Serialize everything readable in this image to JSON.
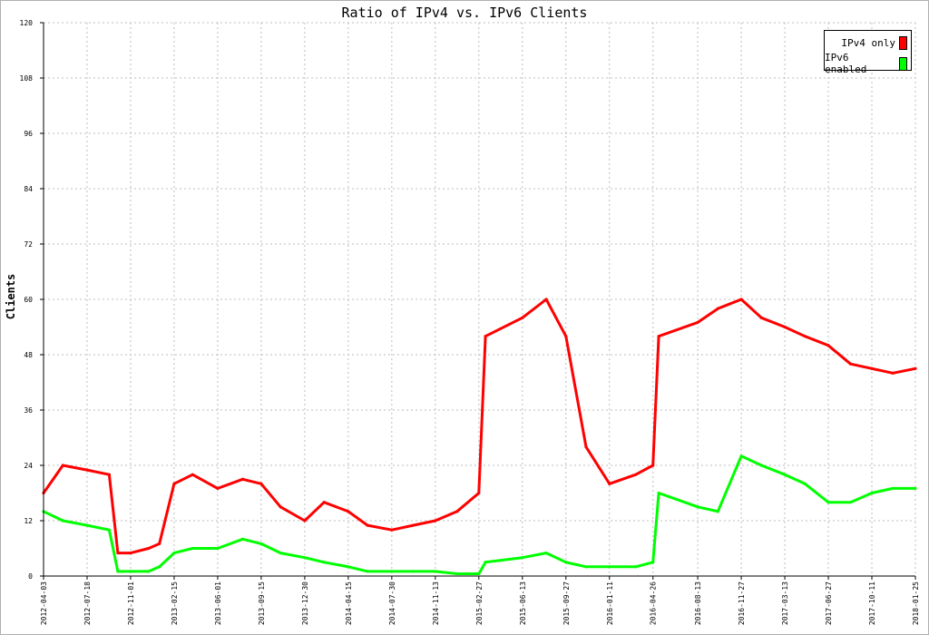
{
  "chart_data": {
    "type": "line",
    "title": "Ratio of IPv4 vs. IPv6 Clients",
    "xlabel": "",
    "ylabel": "Clients",
    "ylim": [
      0,
      120
    ],
    "yticks": [
      0,
      12,
      24,
      36,
      48,
      60,
      72,
      84,
      96,
      108,
      120
    ],
    "grid": true,
    "legend_position": "top-right",
    "x_tick_labels": [
      "2012-04-03",
      "2012-07-18",
      "2012-11-01",
      "2013-02-15",
      "2013-06-01",
      "2013-09-15",
      "2013-12-30",
      "2014-04-15",
      "2014-07-30",
      "2014-11-13",
      "2015-02-27",
      "2015-06-13",
      "2015-09-27",
      "2016-01-11",
      "2016-04-26",
      "2016-08-13",
      "2016-11-27",
      "2017-03-13",
      "2017-06-27",
      "2017-10-11",
      "2018-01-25"
    ],
    "series": [
      {
        "name": "IPv4 only",
        "color": "#ff0000",
        "x": [
          "2012-04-03",
          "2012-05-20",
          "2012-07-18",
          "2012-09-10",
          "2012-10-01",
          "2012-11-01",
          "2012-12-15",
          "2013-01-10",
          "2013-02-15",
          "2013-04-01",
          "2013-06-01",
          "2013-08-01",
          "2013-09-15",
          "2013-11-01",
          "2013-12-30",
          "2014-02-15",
          "2014-04-15",
          "2014-06-01",
          "2014-07-30",
          "2014-09-20",
          "2014-11-13",
          "2015-01-05",
          "2015-02-27",
          "2015-03-15",
          "2015-06-13",
          "2015-08-10",
          "2015-09-27",
          "2015-11-15",
          "2016-01-11",
          "2016-03-15",
          "2016-04-26",
          "2016-05-10",
          "2016-08-13",
          "2016-10-01",
          "2016-11-27",
          "2017-01-15",
          "2017-03-13",
          "2017-05-01",
          "2017-06-27",
          "2017-08-20",
          "2017-10-11",
          "2017-12-01",
          "2018-01-25"
        ],
        "y": [
          18,
          24,
          23,
          22,
          5,
          5,
          6,
          7,
          20,
          22,
          19,
          21,
          20,
          15,
          12,
          16,
          14,
          11,
          10,
          11,
          12,
          14,
          18,
          52,
          56,
          60,
          52,
          28,
          20,
          22,
          24,
          52,
          55,
          58,
          60,
          56,
          54,
          52,
          50,
          46,
          45,
          44,
          45
        ]
      },
      {
        "name": "IPv6 enabled",
        "color": "#00ff00",
        "x": [
          "2012-04-03",
          "2012-05-20",
          "2012-07-18",
          "2012-09-10",
          "2012-10-01",
          "2012-11-01",
          "2012-12-15",
          "2013-01-10",
          "2013-02-15",
          "2013-04-01",
          "2013-06-01",
          "2013-08-01",
          "2013-09-15",
          "2013-11-01",
          "2013-12-30",
          "2014-02-15",
          "2014-04-15",
          "2014-06-01",
          "2014-07-30",
          "2014-09-20",
          "2014-11-13",
          "2015-01-05",
          "2015-02-27",
          "2015-03-15",
          "2015-06-13",
          "2015-08-10",
          "2015-09-27",
          "2015-11-15",
          "2016-01-11",
          "2016-03-15",
          "2016-04-26",
          "2016-05-10",
          "2016-08-13",
          "2016-10-01",
          "2016-11-27",
          "2017-01-15",
          "2017-03-13",
          "2017-05-01",
          "2017-06-27",
          "2017-08-20",
          "2017-10-11",
          "2017-12-01",
          "2018-01-25"
        ],
        "y": [
          14,
          12,
          11,
          10,
          1,
          1,
          1,
          2,
          5,
          6,
          6,
          8,
          7,
          5,
          4,
          3,
          2,
          1,
          1,
          1,
          1,
          0.5,
          0.5,
          3,
          4,
          5,
          3,
          2,
          2,
          2,
          3,
          18,
          15,
          14,
          26,
          24,
          22,
          20,
          16,
          16,
          18,
          19,
          19
        ]
      }
    ]
  }
}
